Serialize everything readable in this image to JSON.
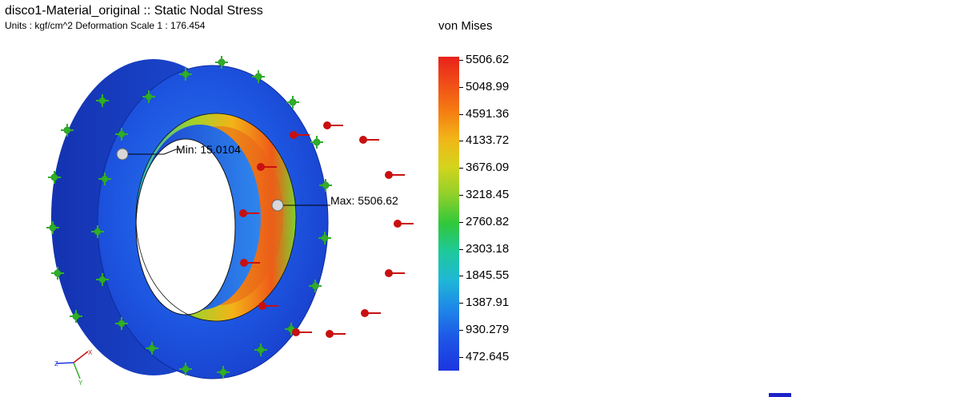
{
  "header": {
    "title": "disco1-Material_original :: Static Nodal Stress",
    "subtitle": "Units : kgf/cm^2   Deformation Scale  1 : 176.454"
  },
  "legend": {
    "title": "von Mises",
    "ticks": [
      "5506.62",
      "5048.99",
      "4591.36",
      "4133.72",
      "3676.09",
      "3218.45",
      "2760.82",
      "2303.18",
      "1845.55",
      "1387.91",
      "930.279",
      "472.645"
    ]
  },
  "annotations": {
    "min_label": "Min: 15.0104",
    "max_label": "Max: 5506.62"
  },
  "triad": {
    "x_label": "X",
    "y_label": "Y",
    "z_label": "Z"
  },
  "colors": {
    "high": "#e8221a",
    "low": "#1c35e0",
    "model_base": "#1d4fd8",
    "load_arrow": "#c81010",
    "fixture": "#2fae2a"
  }
}
